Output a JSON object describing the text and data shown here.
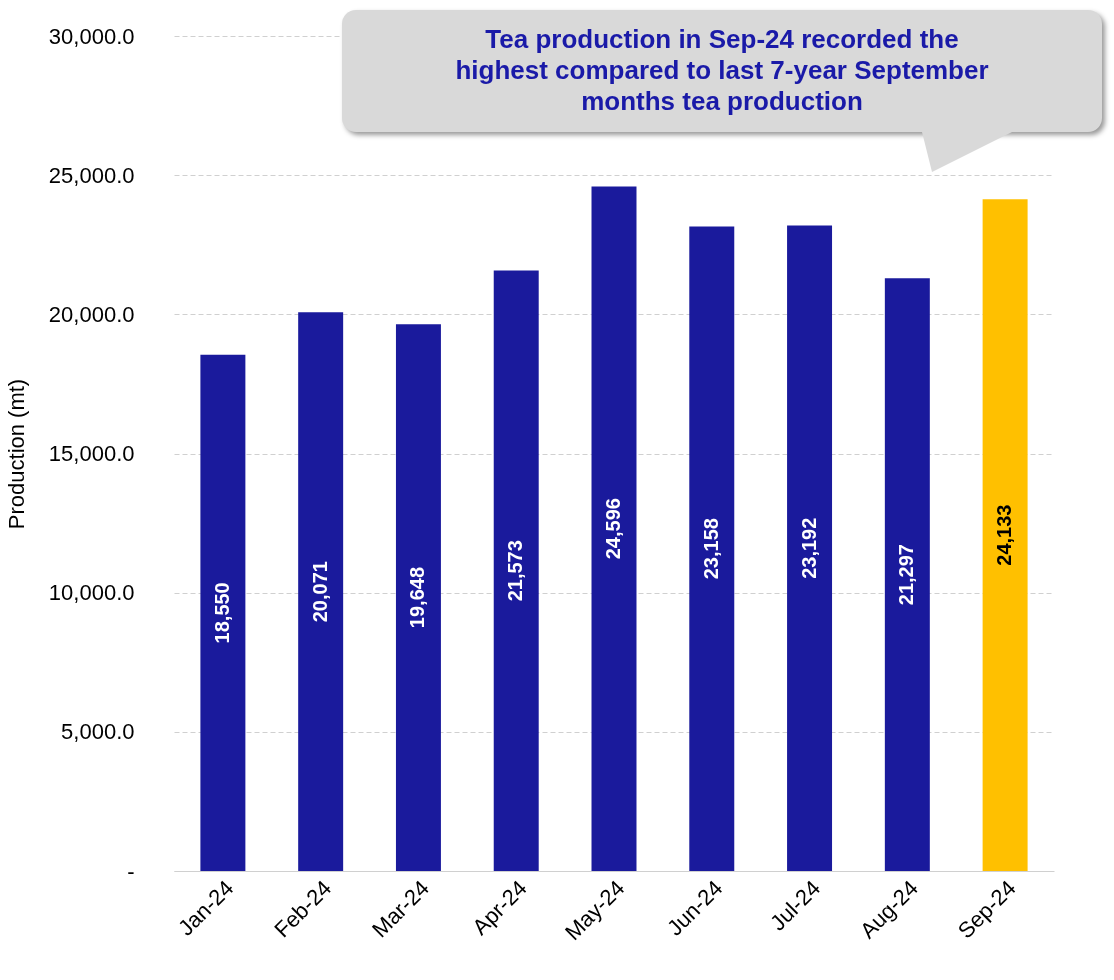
{
  "chart_data": {
    "type": "bar",
    "ylabel": "Production (mt)",
    "categories": [
      "Jan-24",
      "Feb-24",
      "Mar-24",
      "Apr-24",
      "May-24",
      "Jun-24",
      "Jul-24",
      "Aug-24",
      "Sep-24"
    ],
    "values": [
      18550,
      20071,
      19648,
      21573,
      24596,
      23158,
      23192,
      21297,
      24133
    ],
    "colors": [
      "#1a1a9c",
      "#1a1a9c",
      "#1a1a9c",
      "#1a1a9c",
      "#1a1a9c",
      "#1a1a9c",
      "#1a1a9c",
      "#1a1a9c",
      "#ffc000"
    ],
    "ylim": [
      0,
      30000
    ],
    "yticks": [
      {
        "value": 0,
        "label": "-"
      },
      {
        "value": 5000,
        "label": "5,000.0"
      },
      {
        "value": 10000,
        "label": "10,000.0"
      },
      {
        "value": 15000,
        "label": "15,000.0"
      },
      {
        "value": 20000,
        "label": "20,000.0"
      },
      {
        "value": 25000,
        "label": "25,000.0"
      },
      {
        "value": 30000,
        "label": "30,000.0"
      }
    ],
    "grid": "y",
    "value_labels": [
      "18,550",
      "20,071",
      "19,648",
      "21,573",
      "24,596",
      "23,158",
      "23,192",
      "21,297",
      "24,133"
    ],
    "annotations": [
      "Tea production in Sep-24 recorded the highest compared to last 7-year September months tea production"
    ]
  }
}
